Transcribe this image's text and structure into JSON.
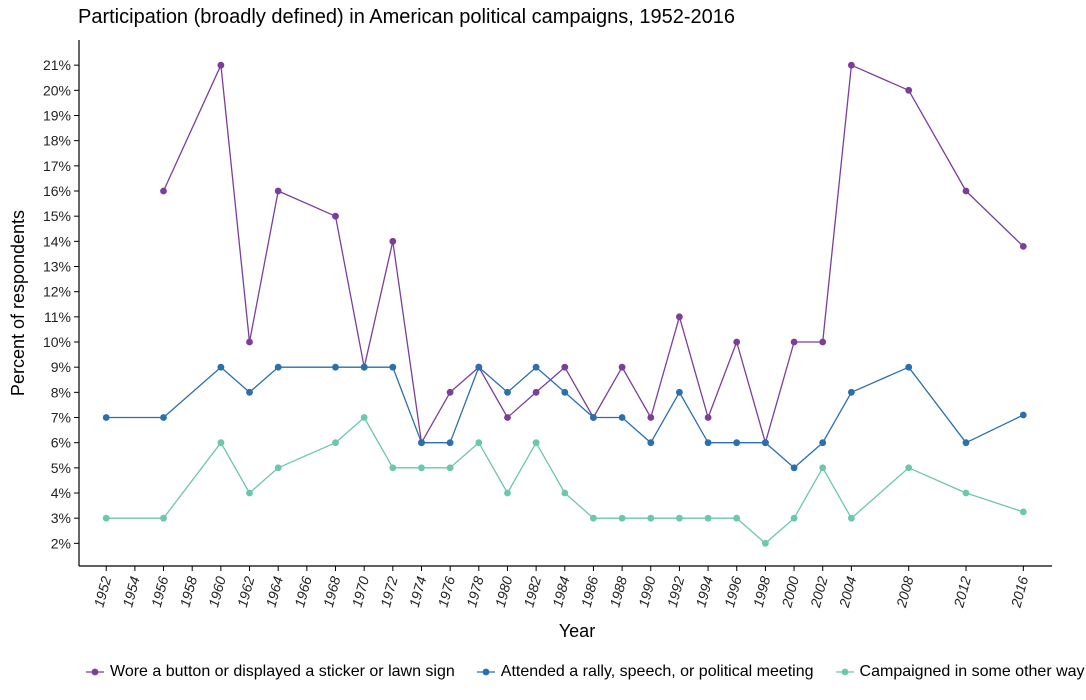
{
  "chart_data": {
    "type": "line",
    "title": "Participation (broadly defined) in American political campaigns, 1952-2016",
    "xlabel": "Year",
    "ylabel": "Percent of respondents",
    "x_ticks": [
      "1952",
      "1954",
      "1956",
      "1958",
      "1960",
      "1962",
      "1964",
      "1966",
      "1968",
      "1970",
      "1972",
      "1974",
      "1976",
      "1978",
      "1980",
      "1982",
      "1984",
      "1986",
      "1988",
      "1990",
      "1992",
      "1994",
      "1996",
      "1998",
      "2000",
      "2002",
      "2004",
      "2008",
      "2012",
      "2016"
    ],
    "y_ticks": [
      "2%",
      "3%",
      "4%",
      "5%",
      "6%",
      "7%",
      "8%",
      "9%",
      "10%",
      "11%",
      "12%",
      "13%",
      "14%",
      "15%",
      "16%",
      "17%",
      "18%",
      "19%",
      "20%",
      "21%"
    ],
    "ylim": [
      1.1,
      22.0
    ],
    "grid": false,
    "legend_position": "bottom",
    "series": [
      {
        "name": "Wore a button or displayed a sticker or lawn sign",
        "color": "#7b3f99",
        "points": [
          [
            1956,
            16
          ],
          [
            1960,
            21
          ],
          [
            1962,
            10
          ],
          [
            1964,
            16
          ],
          [
            1968,
            15
          ],
          [
            1970,
            9
          ],
          [
            1972,
            14
          ],
          [
            1974,
            6
          ],
          [
            1976,
            8
          ],
          [
            1978,
            9
          ],
          [
            1980,
            7
          ],
          [
            1982,
            8
          ],
          [
            1984,
            9
          ],
          [
            1986,
            7
          ],
          [
            1988,
            9
          ],
          [
            1990,
            7
          ],
          [
            1992,
            11
          ],
          [
            1994,
            7
          ],
          [
            1996,
            10
          ],
          [
            1998,
            6
          ],
          [
            2000,
            10
          ],
          [
            2002,
            10
          ],
          [
            2004,
            21
          ],
          [
            2008,
            20
          ],
          [
            2012,
            16
          ],
          [
            2016,
            13.8
          ]
        ]
      },
      {
        "name": "Attended a rally, speech, or political meeting",
        "color": "#2a6fae",
        "points": [
          [
            1952,
            7
          ],
          [
            1956,
            7
          ],
          [
            1960,
            9
          ],
          [
            1962,
            8
          ],
          [
            1964,
            9
          ],
          [
            1968,
            9
          ],
          [
            1970,
            9
          ],
          [
            1972,
            9
          ],
          [
            1974,
            6
          ],
          [
            1976,
            6
          ],
          [
            1978,
            9
          ],
          [
            1980,
            8
          ],
          [
            1982,
            9
          ],
          [
            1984,
            8
          ],
          [
            1986,
            7
          ],
          [
            1988,
            7
          ],
          [
            1990,
            6
          ],
          [
            1992,
            8
          ],
          [
            1994,
            6
          ],
          [
            1996,
            6
          ],
          [
            1998,
            6
          ],
          [
            2000,
            5
          ],
          [
            2002,
            6
          ],
          [
            2004,
            8
          ],
          [
            2008,
            9
          ],
          [
            2012,
            6
          ],
          [
            2016,
            7.1
          ]
        ]
      },
      {
        "name": "Campaigned in some other way",
        "color": "#6dc7a9",
        "points": [
          [
            1952,
            3
          ],
          [
            1956,
            3
          ],
          [
            1960,
            6
          ],
          [
            1962,
            4
          ],
          [
            1964,
            5
          ],
          [
            1968,
            6
          ],
          [
            1970,
            7
          ],
          [
            1972,
            5
          ],
          [
            1974,
            5
          ],
          [
            1976,
            5
          ],
          [
            1978,
            6
          ],
          [
            1980,
            4
          ],
          [
            1982,
            6
          ],
          [
            1984,
            4
          ],
          [
            1986,
            3
          ],
          [
            1988,
            3
          ],
          [
            1990,
            3
          ],
          [
            1992,
            3
          ],
          [
            1994,
            3
          ],
          [
            1996,
            3
          ],
          [
            1998,
            2
          ],
          [
            2000,
            3
          ],
          [
            2002,
            5
          ],
          [
            2004,
            3
          ],
          [
            2008,
            5
          ],
          [
            2012,
            4
          ],
          [
            2016,
            3.25
          ]
        ]
      }
    ]
  }
}
